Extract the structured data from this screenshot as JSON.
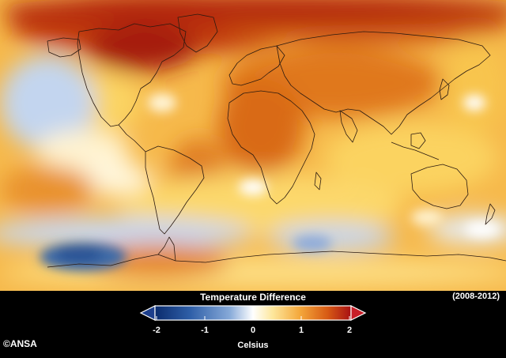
{
  "legend": {
    "title": "Temperature Difference",
    "period": "(2008-2012)",
    "units": "Celsius",
    "ticks": [
      "-2",
      "-1",
      "0",
      "1",
      "2"
    ],
    "tick_values": [
      -2,
      -1,
      0,
      1,
      2
    ],
    "range": [
      -2,
      2
    ],
    "colors": {
      "min_arrow": "#1d3f8c",
      "max_arrow": "#c81e28",
      "stops": [
        "#0b2c6d",
        "#2f5fa8",
        "#86a9d8",
        "#ffffff",
        "#fde79c",
        "#f4a73a",
        "#d75a14",
        "#a81013"
      ]
    }
  },
  "credit": "©ANSA",
  "map": {
    "type": "global temperature anomaly map",
    "colors": {
      "warm": "#e68a2a",
      "hot": "#c7400f",
      "very_hot": "#a51c0c",
      "mild": "#fbd463",
      "neutral": "#fff4cf",
      "cool": "#c6d6ef",
      "cold": "#3c6aa8",
      "coast": "#2b1a10"
    }
  }
}
